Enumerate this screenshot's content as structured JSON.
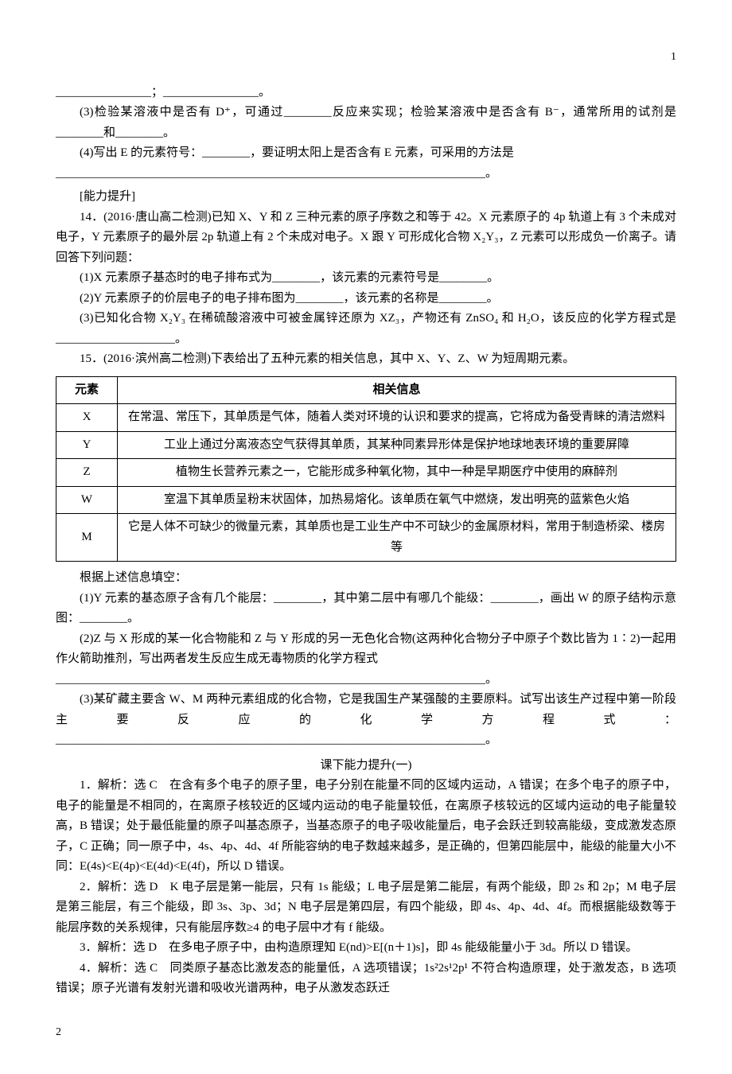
{
  "pageTop": "1",
  "pageBottom": "2",
  "line_sep": "________________",
  "line_sep2": "；________________。",
  "q13_3": "(3)检验某溶液中是否有 D⁺，可通过________反应来实现；检验某溶液中是否含有 B⁻，通常所用的试剂是________和________。",
  "q13_4": "(4)写出 E 的元素符号：________，要证明太阳上是否含有 E 元素，可采用的方法是",
  "full_blank_end": "________________________________________________________________________。",
  "ability": "[能力提升]",
  "q14_head": "14．(2016·唐山高二检测)已知 X、Y 和 Z 三种元素的原子序数之和等于 42。X 元素原子的 4p 轨道上有 3 个未成对电子，Y 元素原子的最外层 2p 轨道上有 2 个未成对电子。X 跟 Y 可形成化合物 X₂Y₃，Z 元素可以形成负一价离子。请回答下列问题：",
  "q14_1": "(1)X 元素原子基态时的电子排布式为________，该元素的元素符号是________。",
  "q14_2": "(2)Y 元素原子的价层电子的电子排布图为________，该元素的名称是________。",
  "q14_3": "(3)已知化合物 X₂Y₃ 在稀硫酸溶液中可被金属锌还原为 XZ₃，产物还有 ZnSO₄ 和 H₂O，该反应的化学方程式是____________________。",
  "q15_head": "15．(2016·滨州高二检测)下表给出了五种元素的相关信息，其中 X、Y、Z、W 为短周期元素。",
  "table": {
    "header": [
      "元素",
      "相关信息"
    ],
    "rows": [
      [
        "X",
        "在常温、常压下，其单质是气体，随着人类对环境的认识和要求的提高，它将成为备受青睐的清洁燃料"
      ],
      [
        "Y",
        "工业上通过分离液态空气获得其单质，其某种同素异形体是保护地球地表环境的重要屏障"
      ],
      [
        "Z",
        "植物生长营养元素之一，它能形成多种氧化物，其中一种是早期医疗中使用的麻醉剂"
      ],
      [
        "W",
        "室温下其单质呈粉末状固体，加热易熔化。该单质在氧气中燃烧，发出明亮的蓝紫色火焰"
      ],
      [
        "M",
        "它是人体不可缺少的微量元素，其单质也是工业生产中不可缺少的金属原材料，常用于制造桥梁、楼房等"
      ]
    ]
  },
  "q15_after": "根据上述信息填空：",
  "q15_1": "(1)Y 元素的基态原子含有几个能层：________，其中第二层中有哪几个能级：________，画出 W 的原子结构示意图：________。",
  "q15_2": "(2)Z 与 X 形成的某一化合物能和 Z 与 Y 形成的另一无色化合物(这两种化合物分子中原子个数比皆为 1∶2)一起用作火箭助推剂，写出两者发生反应生成无毒物质的化学方程式",
  "q15_3": "(3)某矿藏主要含 W、M 两种元素组成的化合物，它是我国生产某强酸的主要原料。试写出该生产过程中第一阶段主要反应的化学方程式：",
  "ans_title": "课下能力提升(一)",
  "a1": "1．解析：选 C　在含有多个电子的原子里，电子分别在能量不同的区域内运动，A 错误；在多个电子的原子中，电子的能量是不相同的，在离原子核较近的区域内运动的电子能量较低，在离原子核较远的区域内运动的电子能量较高，B 错误；处于最低能量的原子叫基态原子，当基态原子的电子吸收能量后，电子会跃迁到较高能级，变成激发态原子，C 正确；同一原子中，4s、4p、4d、4f 所能容纳的电子数越来越多，是正确的，但第四能层中，能级的能量大小不同：E(4s)<E(4p)<E(4d)<E(4f)，所以 D 错误。",
  "a2": "2．解析：选 D　K 电子层是第一能层，只有 1s 能级；L 电子层是第二能层，有两个能级，即 2s 和 2p；M 电子层是第三能层，有三个能级，即 3s、3p、3d；N 电子层是第四层，有四个能级，即 4s、4p、4d、4f。而根据能级数等于能层序数的关系规律，只有能层序数≥4 的电子层中才有 f 能级。",
  "a3": "3．解析：选 D　在多电子原子中，由构造原理知 E(nd)>E[(n＋1)s]，即 4s 能级能量小于 3d。所以 D 错误。",
  "a4": "4．解析：选 C　同类原子基态比激发态的能量低，A 选项错误；1s²2s¹2p¹ 不符合构造原理，处于激发态，B 选项错误；原子光谱有发射光谱和吸收光谱两种，电子从激发态跃迁"
}
